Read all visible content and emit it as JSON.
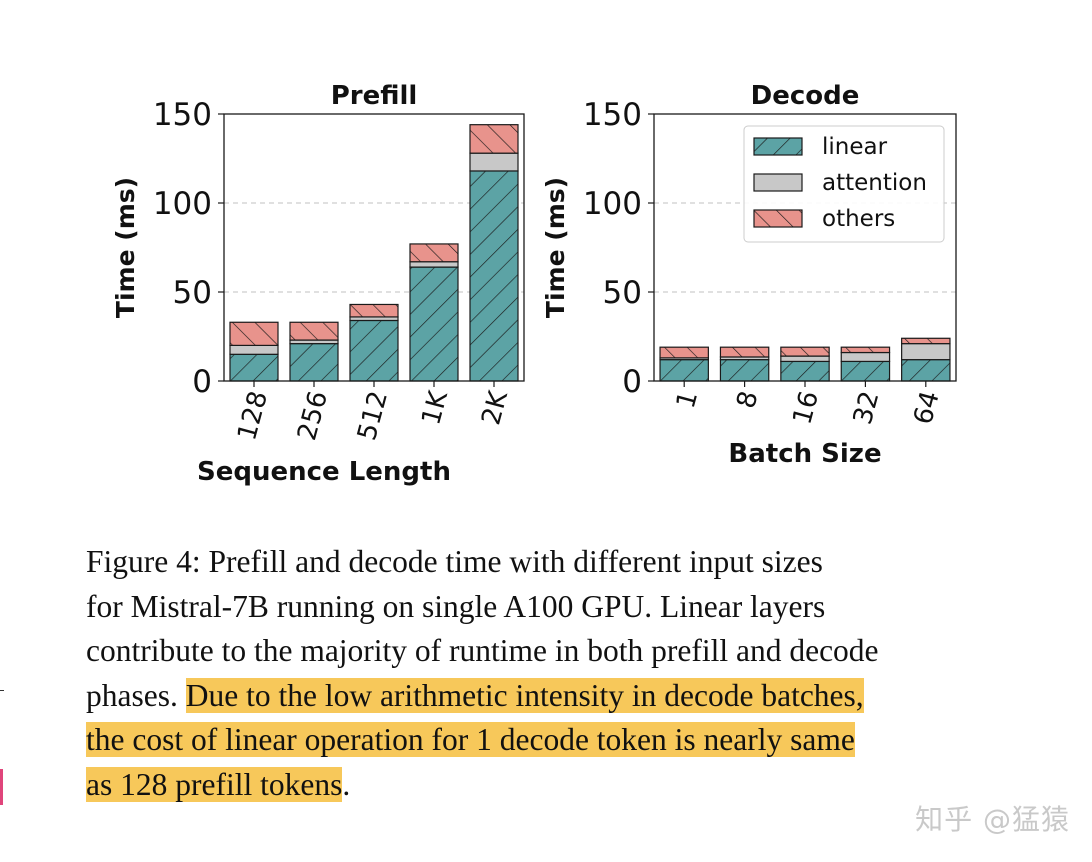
{
  "chart_data": [
    {
      "type": "bar",
      "stacked": true,
      "title": "Prefill",
      "xlabel": "Sequence Length",
      "ylabel": "Time (ms)",
      "ylim": [
        0,
        150
      ],
      "yticks": [
        "0",
        "50",
        "100",
        "150"
      ],
      "grid": true,
      "categories": [
        "128",
        "256",
        "512",
        "1K",
        "2K"
      ],
      "series": [
        {
          "name": "linear",
          "values": [
            15,
            21,
            34,
            64,
            118
          ]
        },
        {
          "name": "attention",
          "values": [
            5,
            2,
            2,
            3,
            10
          ]
        },
        {
          "name": "others",
          "values": [
            13,
            10,
            7,
            10,
            16
          ]
        }
      ]
    },
    {
      "type": "bar",
      "stacked": true,
      "title": "Decode",
      "xlabel": "Batch Size",
      "ylabel": "Time (ms)",
      "ylim": [
        0,
        150
      ],
      "yticks": [
        "0",
        "50",
        "100",
        "150"
      ],
      "grid": true,
      "legend": "top-right",
      "categories": [
        "1",
        "8",
        "16",
        "32",
        "64"
      ],
      "series": [
        {
          "name": "linear",
          "values": [
            12,
            12,
            11,
            11,
            12
          ]
        },
        {
          "name": "attention",
          "values": [
            1,
            1.5,
            3,
            5,
            9
          ]
        },
        {
          "name": "others",
          "values": [
            6,
            5.5,
            5,
            3,
            3
          ]
        }
      ]
    }
  ],
  "colors": {
    "linear": "#5ca3a5",
    "attention": "#c8c8c8",
    "others": "#e8938c",
    "grid": "#c0c0c0",
    "highlight": "#f7c85a"
  },
  "caption": {
    "line1": "Figure 4: Prefill and decode time with different input sizes",
    "line2": "for Mistral-7B running on single A100 GPU. Linear layers",
    "line3": "contribute to the majority of runtime in both prefill and decode",
    "line4_plain": "phases. ",
    "line4_highlight": "Due to the low arithmetic intensity in decode batches,",
    "line5_highlight": "the cost of linear operation for 1 decode token is nearly same",
    "line6_highlight": "as 128 prefill tokens",
    "line6_plain": "."
  },
  "watermark": "知乎 @猛猿"
}
